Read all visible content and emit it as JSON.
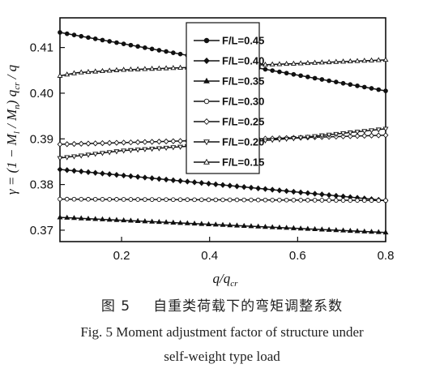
{
  "chart_data": {
    "type": "line",
    "xlabel": "q/q",
    "xlabel_sub": "cr",
    "ylabel_parts": {
      "a": "γ = (1 − M",
      "a_sub": "l",
      "b": " / M",
      "b_sub": "n",
      "c": ") q",
      "c_sub": "cr",
      "d": " / q"
    },
    "xlim": [
      0.06,
      0.8
    ],
    "ylim": [
      0.3675,
      0.4165
    ],
    "xticks": [
      {
        "value": 0.2,
        "label": "0.2"
      },
      {
        "value": 0.4,
        "label": "0.4"
      },
      {
        "value": 0.6,
        "label": "0.6"
      },
      {
        "value": 0.8,
        "label": "0.8"
      }
    ],
    "yticks": [
      {
        "value": 0.37,
        "label": "0.37"
      },
      {
        "value": 0.38,
        "label": "0.38"
      },
      {
        "value": 0.39,
        "label": "0.39"
      },
      {
        "value": 0.4,
        "label": "0.40"
      },
      {
        "value": 0.41,
        "label": "0.41"
      }
    ],
    "grid": false,
    "legend_position": "top-center",
    "series": [
      {
        "name": "F/L=0.45",
        "marker": "filled-circle",
        "points": [
          [
            0.06,
            0.4133
          ],
          [
            0.8,
            0.4005
          ]
        ]
      },
      {
        "name": "F/L=0.40",
        "marker": "filled-diamond",
        "points": [
          [
            0.06,
            0.3833
          ],
          [
            0.8,
            0.3765
          ]
        ]
      },
      {
        "name": "F/L=0.35",
        "marker": "filled-triangle",
        "points": [
          [
            0.06,
            0.3728
          ],
          [
            0.8,
            0.3695
          ]
        ]
      },
      {
        "name": "F/L=0.30",
        "marker": "open-circle",
        "points": [
          [
            0.06,
            0.3768
          ],
          [
            0.8,
            0.3765
          ]
        ]
      },
      {
        "name": "F/L=0.25",
        "marker": "open-diamond",
        "points": [
          [
            0.06,
            0.3888
          ],
          [
            0.4,
            0.3897
          ],
          [
            0.8,
            0.3908
          ]
        ]
      },
      {
        "name": "F/L=0.20",
        "marker": "open-triangle-down",
        "points": [
          [
            0.06,
            0.3858
          ],
          [
            0.2,
            0.3874
          ],
          [
            0.4,
            0.3887
          ],
          [
            0.6,
            0.3902
          ],
          [
            0.8,
            0.3922
          ]
        ]
      },
      {
        "name": "F/L=0.15",
        "marker": "open-triangle-up",
        "points": [
          [
            0.06,
            0.4038
          ],
          [
            0.1,
            0.4045
          ],
          [
            0.2,
            0.4051
          ],
          [
            0.4,
            0.4058
          ],
          [
            0.6,
            0.4065
          ],
          [
            0.8,
            0.4073
          ]
        ]
      }
    ]
  },
  "caption": {
    "cn_fig": "图 5",
    "cn_text": "自重类荷载下的弯矩调整系数",
    "en_line1": "Fig. 5  Moment adjustment factor of structure under",
    "en_line2": "self-weight type load"
  }
}
